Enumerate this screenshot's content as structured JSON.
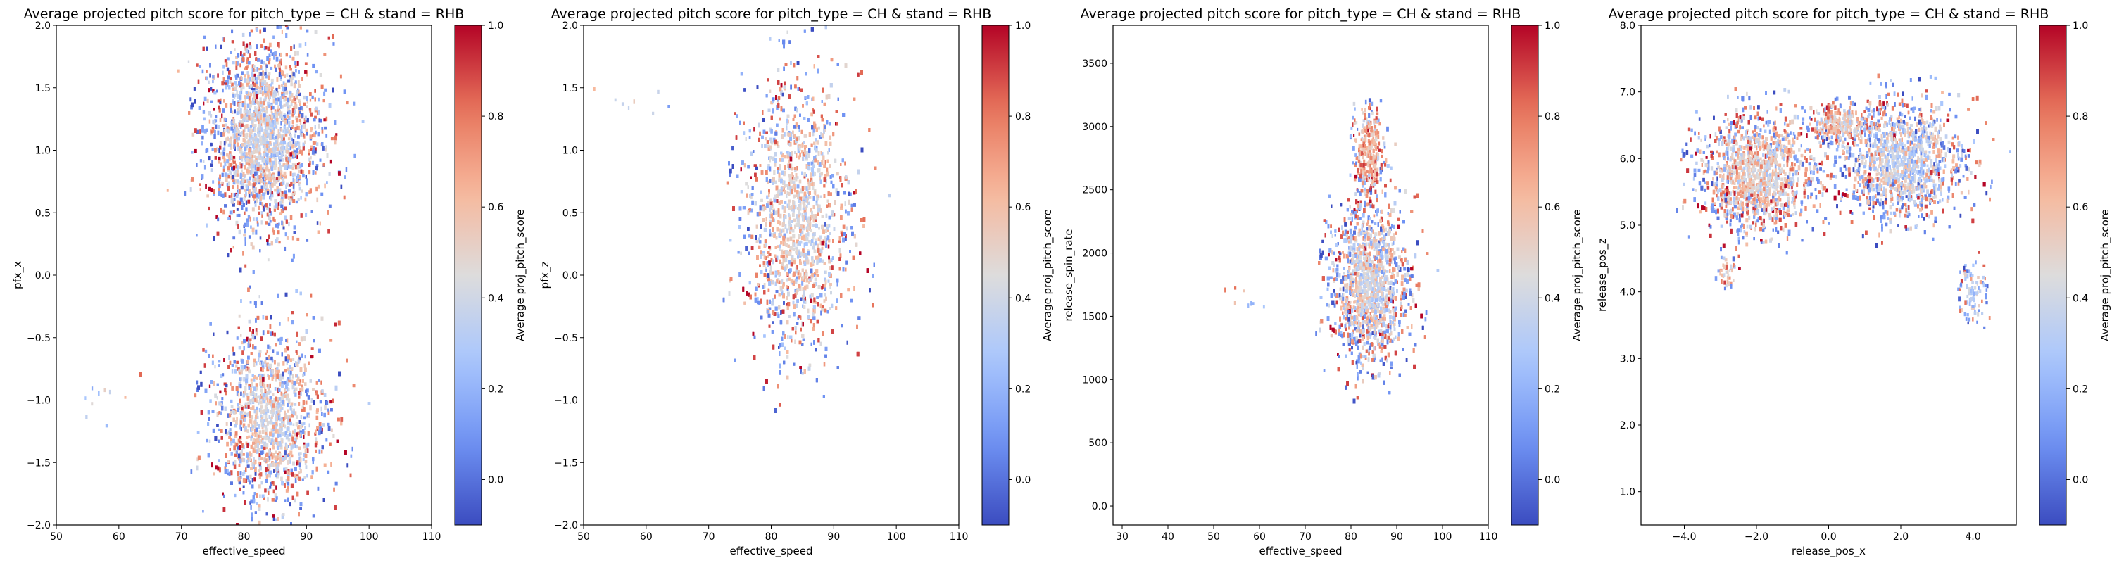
{
  "colormap": {
    "name": "coolwarm",
    "stops": [
      "#3b4cc0",
      "#6f92f3",
      "#aac7fd",
      "#dddcdc",
      "#f7b89c",
      "#e7745b",
      "#b40426"
    ]
  },
  "chart_data": [
    {
      "type": "hexbin",
      "title": "Average projected pitch score for pitch_type = CH & stand = RHB",
      "xlabel": "effective_speed",
      "ylabel": "pfx_x",
      "xlim": [
        50,
        110
      ],
      "ylim": [
        -2.0,
        2.0
      ],
      "xticks": [
        50,
        60,
        70,
        80,
        90,
        100,
        110
      ],
      "yticks": [
        -2.0,
        -1.5,
        -1.0,
        -0.5,
        0.0,
        0.5,
        1.0,
        1.5,
        2.0
      ],
      "colorbar": {
        "label": "Average proj_pitch_score",
        "range": [
          -0.1,
          1.0
        ],
        "ticks": [
          0.0,
          0.2,
          0.4,
          0.6,
          0.8,
          1.0
        ]
      },
      "clusters": [
        {
          "cx": 83,
          "cy": 1.1,
          "sx": 4.5,
          "sy": 0.38,
          "n": 2600,
          "mean": 0.42,
          "edge": 0.35
        },
        {
          "cx": 84,
          "cy": -1.15,
          "sx": 4.5,
          "sy": 0.36,
          "n": 2600,
          "mean": 0.45,
          "edge": 0.35
        },
        {
          "cx": 56,
          "cy": -1.05,
          "sx": 3.0,
          "sy": 0.12,
          "n": 10,
          "mean": 0.35,
          "edge": 0.15
        }
      ]
    },
    {
      "type": "hexbin",
      "title": "Average projected pitch score for pitch_type = CH & stand = RHB",
      "xlabel": "effective_speed",
      "ylabel": "pfx_z",
      "xlim": [
        50,
        110
      ],
      "ylim": [
        -2.0,
        2.0
      ],
      "xticks": [
        50,
        60,
        70,
        80,
        90,
        100,
        110
      ],
      "yticks": [
        -2.0,
        -1.5,
        -1.0,
        -0.5,
        0.0,
        0.5,
        1.0,
        1.5,
        2.0
      ],
      "colorbar": {
        "label": "Average proj_pitch_score",
        "range": [
          -0.1,
          1.0
        ],
        "ticks": [
          0.0,
          0.2,
          0.4,
          0.6,
          0.8,
          1.0
        ]
      },
      "clusters": [
        {
          "cx": 84,
          "cy": 0.45,
          "sx": 4.2,
          "sy": 0.55,
          "n": 5200,
          "mean": 0.47,
          "edge": 0.3
        },
        {
          "cx": 56,
          "cy": 1.4,
          "sx": 4.0,
          "sy": 0.08,
          "n": 8,
          "mean": 0.4,
          "edge": 0.15
        }
      ]
    },
    {
      "type": "hexbin",
      "title": "Average projected pitch score for pitch_type = CH & stand = RHB",
      "xlabel": "effective_speed",
      "ylabel": "release_spin_rate",
      "xlim": [
        28,
        110
      ],
      "ylim": [
        -150,
        3800
      ],
      "xticks": [
        30,
        40,
        50,
        60,
        70,
        80,
        90,
        100,
        110
      ],
      "yticks": [
        0,
        500,
        1000,
        1500,
        2000,
        2500,
        3000,
        3500
      ],
      "colorbar": {
        "label": "Average proj_pitch_score",
        "range": [
          -0.1,
          1.0
        ],
        "ticks": [
          0.0,
          0.2,
          0.4,
          0.6,
          0.8,
          1.0
        ]
      },
      "clusters": [
        {
          "cx": 84,
          "cy": 1750,
          "sx": 4.2,
          "sy": 330,
          "n": 5200,
          "mean": 0.43,
          "edge": 0.3
        },
        {
          "cx": 84,
          "cy": 2800,
          "sx": 1.6,
          "sy": 180,
          "n": 300,
          "mean": 0.62,
          "edge": 0.2
        },
        {
          "cx": 57,
          "cy": 1600,
          "sx": 3.5,
          "sy": 70,
          "n": 8,
          "mean": 0.4,
          "edge": 0.15
        }
      ]
    },
    {
      "type": "hexbin",
      "title": "Average projected pitch score for pitch_type = CH & stand = RHB",
      "xlabel": "release_pos_x",
      "ylabel": "release_pos_z",
      "xlim": [
        -5.2,
        5.2
      ],
      "ylim": [
        0.5,
        8.0
      ],
      "xticks": [
        -4,
        -2,
        0,
        2,
        4
      ],
      "yticks": [
        1,
        2,
        3,
        4,
        5,
        6,
        7,
        8
      ],
      "colorbar": {
        "label": "Average proj_pitch_score",
        "range": [
          -0.1,
          1.0
        ],
        "ticks": [
          0.0,
          0.2,
          0.4,
          0.6,
          0.8,
          1.0
        ]
      },
      "clusters": [
        {
          "cx": -2.0,
          "cy": 5.75,
          "sx": 0.8,
          "sy": 0.45,
          "n": 2600,
          "mean": 0.5,
          "edge": 0.3
        },
        {
          "cx": 2.0,
          "cy": 5.95,
          "sx": 0.85,
          "sy": 0.45,
          "n": 2600,
          "mean": 0.38,
          "edge": 0.3
        },
        {
          "cx": 0.3,
          "cy": 6.5,
          "sx": 0.45,
          "sy": 0.15,
          "n": 250,
          "mean": 0.55,
          "edge": 0.2
        },
        {
          "cx": 4.0,
          "cy": 4.0,
          "sx": 0.2,
          "sy": 0.25,
          "n": 90,
          "mean": 0.35,
          "edge": 0.2
        },
        {
          "cx": -2.8,
          "cy": 4.3,
          "sx": 0.15,
          "sy": 0.12,
          "n": 40,
          "mean": 0.55,
          "edge": 0.2
        }
      ]
    }
  ]
}
